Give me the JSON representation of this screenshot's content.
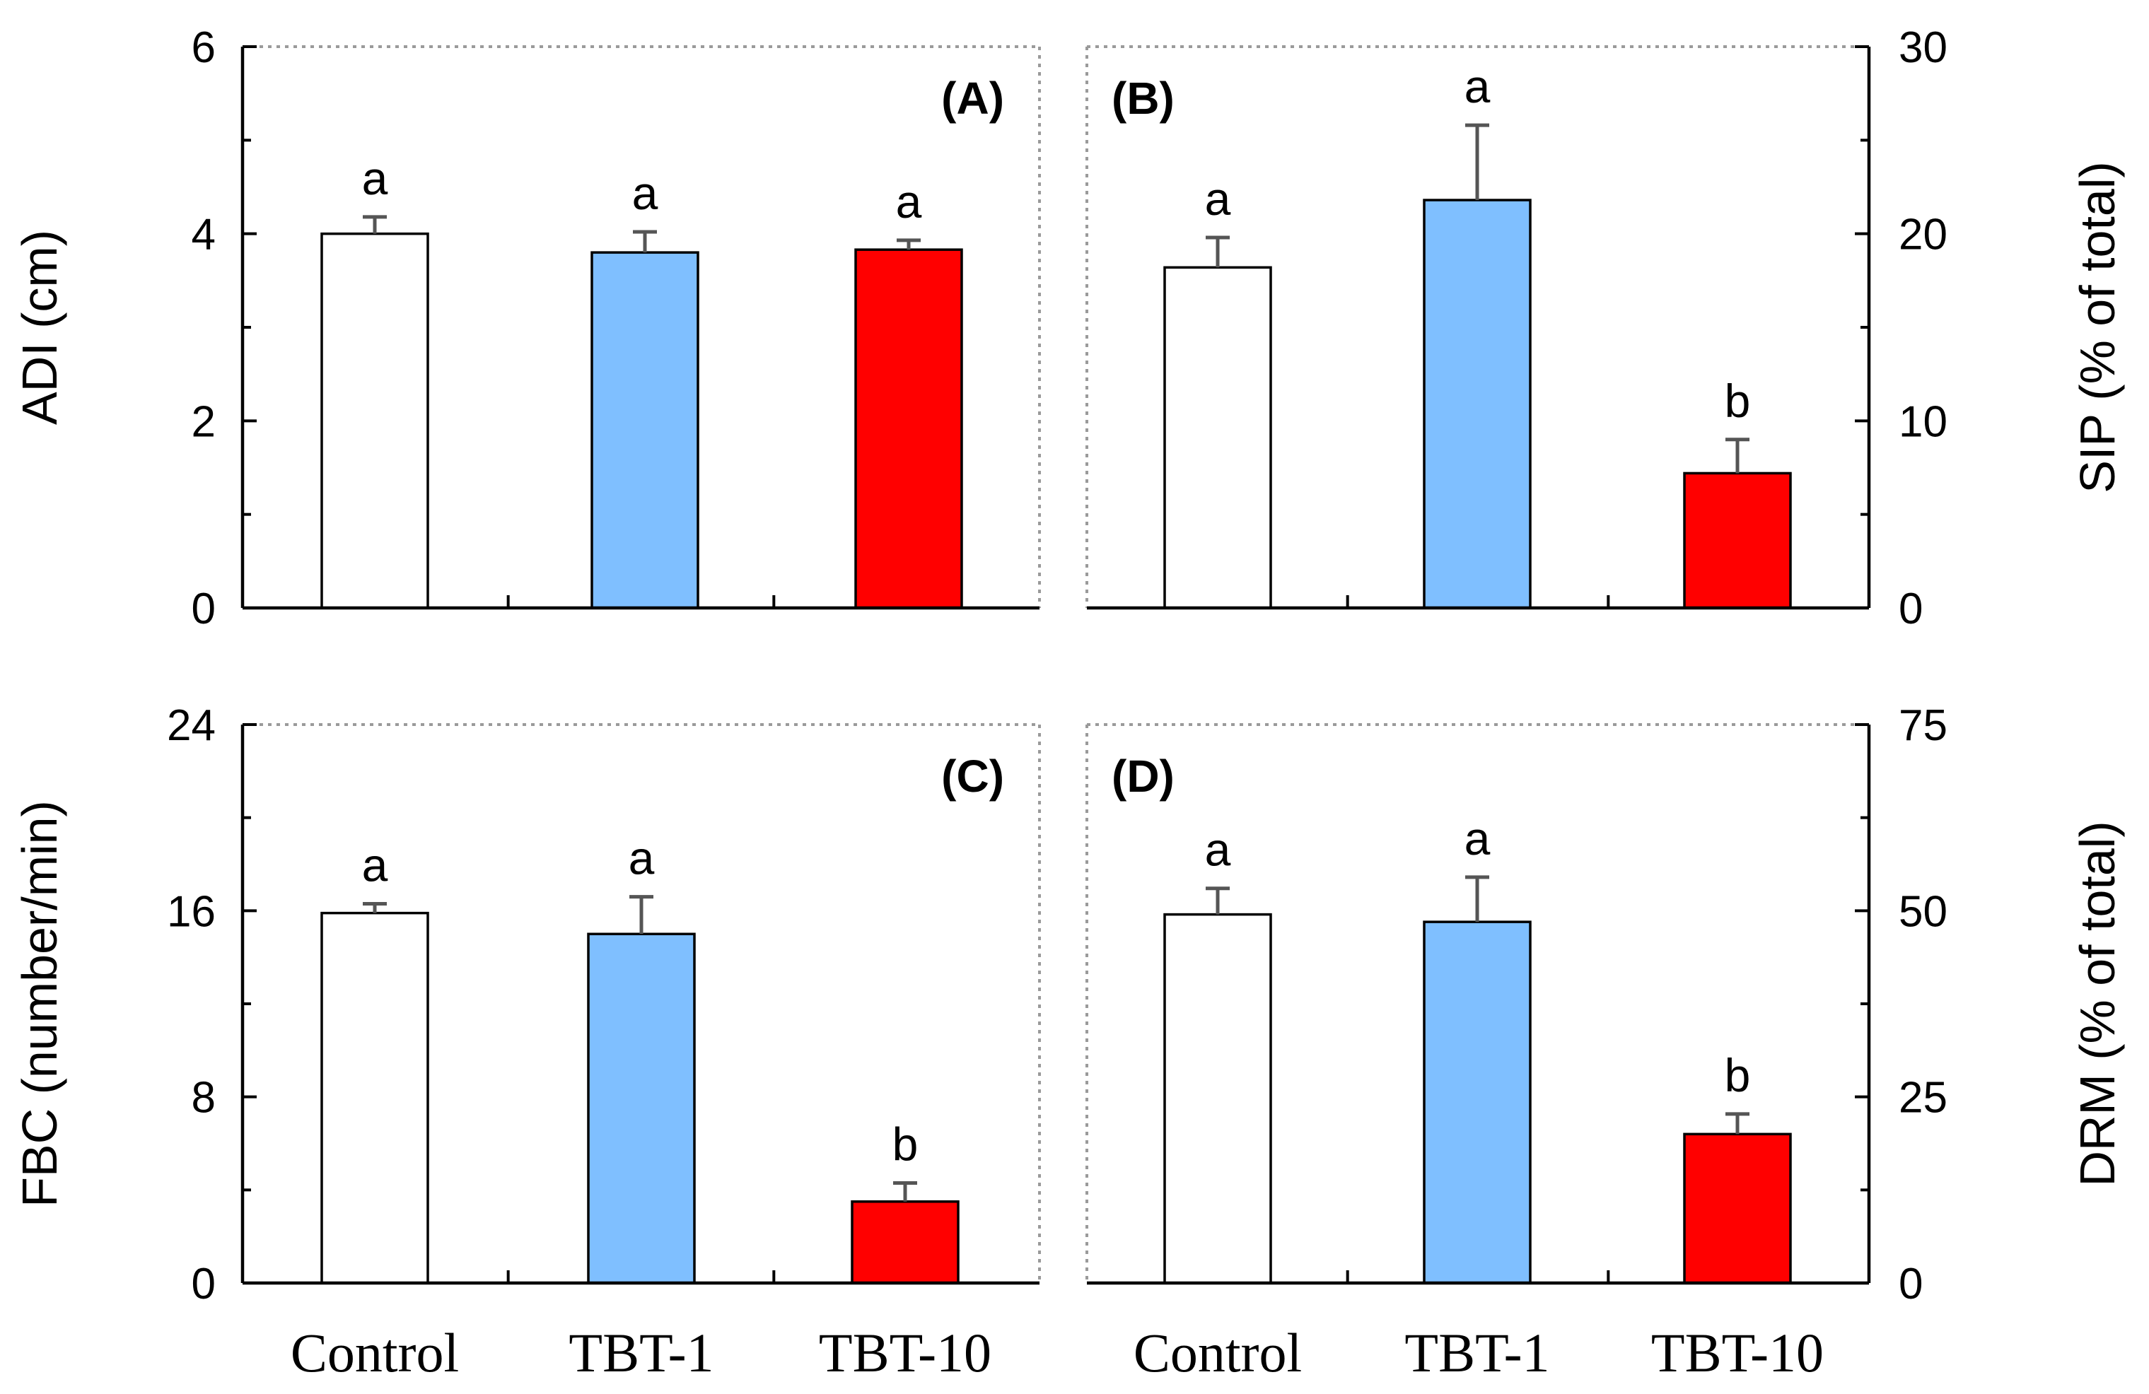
{
  "categories": [
    "Control",
    "TBT-1",
    "TBT-10"
  ],
  "colors": {
    "Control": "#ffffff",
    "TBT-1": "#7fbfff",
    "TBT-10": "#ff0000",
    "axis": "#000000",
    "frame": "#9a9a9a",
    "error_bar": "#555555"
  },
  "chart_data": [
    {
      "type": "bar",
      "panel": "(A)",
      "ylabel": "ADI (cm)",
      "y_axis_side": "left",
      "ylim": [
        0,
        6
      ],
      "yticks": [
        0,
        2,
        4,
        6
      ],
      "minor_ticks": [
        1,
        3,
        5
      ],
      "categories": [
        "Control",
        "TBT-1",
        "TBT-10"
      ],
      "values": [
        4.0,
        3.8,
        3.83
      ],
      "errors": [
        0.18,
        0.22,
        0.1
      ],
      "significance": [
        "a",
        "a",
        "a"
      ],
      "label_position": "top-right"
    },
    {
      "type": "bar",
      "panel": "(B)",
      "ylabel": "SIP (% of total)",
      "y_axis_side": "right",
      "ylim": [
        0,
        30
      ],
      "yticks": [
        0,
        10,
        20,
        30
      ],
      "minor_ticks": [
        5,
        15,
        25
      ],
      "categories": [
        "Control",
        "TBT-1",
        "TBT-10"
      ],
      "values": [
        18.2,
        21.8,
        7.2
      ],
      "errors": [
        1.6,
        4.0,
        1.8
      ],
      "significance": [
        "a",
        "a",
        "b"
      ],
      "label_position": "top-left"
    },
    {
      "type": "bar",
      "panel": "(C)",
      "ylabel": "FBC (number/min)",
      "y_axis_side": "left",
      "ylim": [
        0,
        24
      ],
      "yticks": [
        0,
        8,
        16,
        24
      ],
      "minor_ticks": [
        4,
        12,
        20
      ],
      "categories": [
        "Control",
        "TBT-1",
        "TBT-10"
      ],
      "values": [
        15.9,
        15.0,
        3.5
      ],
      "errors": [
        0.4,
        1.6,
        0.8
      ],
      "significance": [
        "a",
        "a",
        "b"
      ],
      "label_position": "top-right"
    },
    {
      "type": "bar",
      "panel": "(D)",
      "ylabel": "DRM (% of total)",
      "y_axis_side": "right",
      "ylim": [
        0,
        75
      ],
      "yticks": [
        0,
        25,
        50,
        75
      ],
      "minor_ticks": [
        12.5,
        37.5,
        62.5
      ],
      "categories": [
        "Control",
        "TBT-1",
        "TBT-10"
      ],
      "values": [
        49.5,
        48.5,
        20.0
      ],
      "errors": [
        3.5,
        6.0,
        2.7
      ],
      "significance": [
        "a",
        "a",
        "b"
      ],
      "label_position": "top-left"
    }
  ]
}
